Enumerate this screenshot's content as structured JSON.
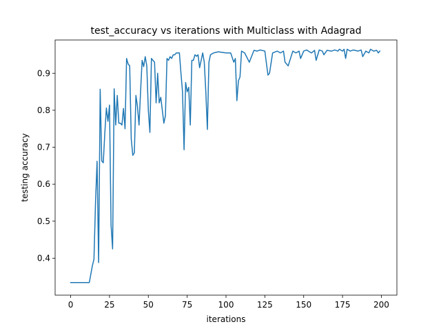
{
  "chart_data": {
    "type": "line",
    "title": "test_accuracy vs iterations with Multiclass with Adagrad",
    "xlabel": "iterations",
    "ylabel": "testing accuracy",
    "xlim": [
      -10,
      210
    ],
    "ylim": [
      0.3,
      0.99
    ],
    "xticks": [
      0,
      25,
      50,
      75,
      100,
      125,
      150,
      175,
      200
    ],
    "yticks": [
      0.4,
      0.5,
      0.6,
      0.7,
      0.8,
      0.9
    ],
    "ytick_labels": [
      "0.4",
      "0.5",
      "0.6",
      "0.7",
      "0.8",
      "0.9"
    ],
    "grid": false,
    "legend": false,
    "series": [
      {
        "color": "#1f77b4",
        "x": [
          0,
          12,
          14,
          15,
          16,
          17,
          18,
          19,
          20,
          21,
          22,
          23,
          24,
          25,
          26,
          27,
          28,
          29,
          30,
          31,
          32,
          33,
          34,
          35,
          36,
          37,
          38,
          39,
          40,
          41,
          42,
          43,
          44,
          45,
          46,
          47,
          48,
          49,
          50,
          51,
          52,
          53,
          54,
          55,
          56,
          57,
          58,
          59,
          60,
          61,
          62,
          63,
          64,
          65,
          66,
          67,
          68,
          69,
          70,
          71,
          72,
          73,
          74,
          75,
          76,
          77,
          78,
          79,
          80,
          81,
          82,
          83,
          84,
          85,
          86,
          87,
          88,
          89,
          90,
          92,
          95,
          100,
          103,
          105,
          106,
          107,
          108,
          109,
          110,
          112,
          115,
          118,
          120,
          122,
          125,
          127,
          128,
          130,
          133,
          135,
          137,
          138,
          140,
          143,
          145,
          147,
          148,
          150,
          152,
          153,
          155,
          157,
          158,
          160,
          162,
          163,
          165,
          168,
          170,
          172,
          173,
          175,
          176,
          177,
          178,
          180,
          182,
          185,
          187,
          188,
          190,
          192,
          193,
          195,
          197,
          198,
          199
        ],
        "y": [
          0.334,
          0.334,
          0.38,
          0.397,
          0.55,
          0.662,
          0.388,
          0.857,
          0.663,
          0.658,
          0.74,
          0.806,
          0.77,
          0.814,
          0.49,
          0.425,
          0.858,
          0.76,
          0.84,
          0.765,
          0.765,
          0.76,
          0.805,
          0.75,
          0.94,
          0.925,
          0.92,
          0.722,
          0.678,
          0.685,
          0.84,
          0.81,
          0.76,
          0.85,
          0.935,
          0.918,
          0.945,
          0.92,
          0.8,
          0.74,
          0.94,
          0.935,
          0.93,
          0.82,
          0.9,
          0.82,
          0.835,
          0.8,
          0.765,
          0.785,
          0.94,
          0.935,
          0.945,
          0.94,
          0.95,
          0.95,
          0.955,
          0.955,
          0.955,
          0.9,
          0.85,
          0.693,
          0.875,
          0.85,
          0.862,
          0.76,
          0.935,
          0.935,
          0.95,
          0.946,
          0.95,
          0.915,
          0.935,
          0.955,
          0.93,
          0.85,
          0.748,
          0.93,
          0.95,
          0.955,
          0.958,
          0.955,
          0.955,
          0.93,
          0.94,
          0.826,
          0.88,
          0.89,
          0.96,
          0.955,
          0.93,
          0.962,
          0.96,
          0.963,
          0.96,
          0.895,
          0.9,
          0.955,
          0.96,
          0.955,
          0.96,
          0.93,
          0.92,
          0.96,
          0.955,
          0.96,
          0.94,
          0.96,
          0.963,
          0.96,
          0.955,
          0.962,
          0.935,
          0.963,
          0.96,
          0.95,
          0.962,
          0.96,
          0.963,
          0.96,
          0.965,
          0.96,
          0.965,
          0.94,
          0.965,
          0.96,
          0.963,
          0.96,
          0.963,
          0.945,
          0.96,
          0.955,
          0.965,
          0.96,
          0.962,
          0.955,
          0.96
        ]
      }
    ]
  }
}
